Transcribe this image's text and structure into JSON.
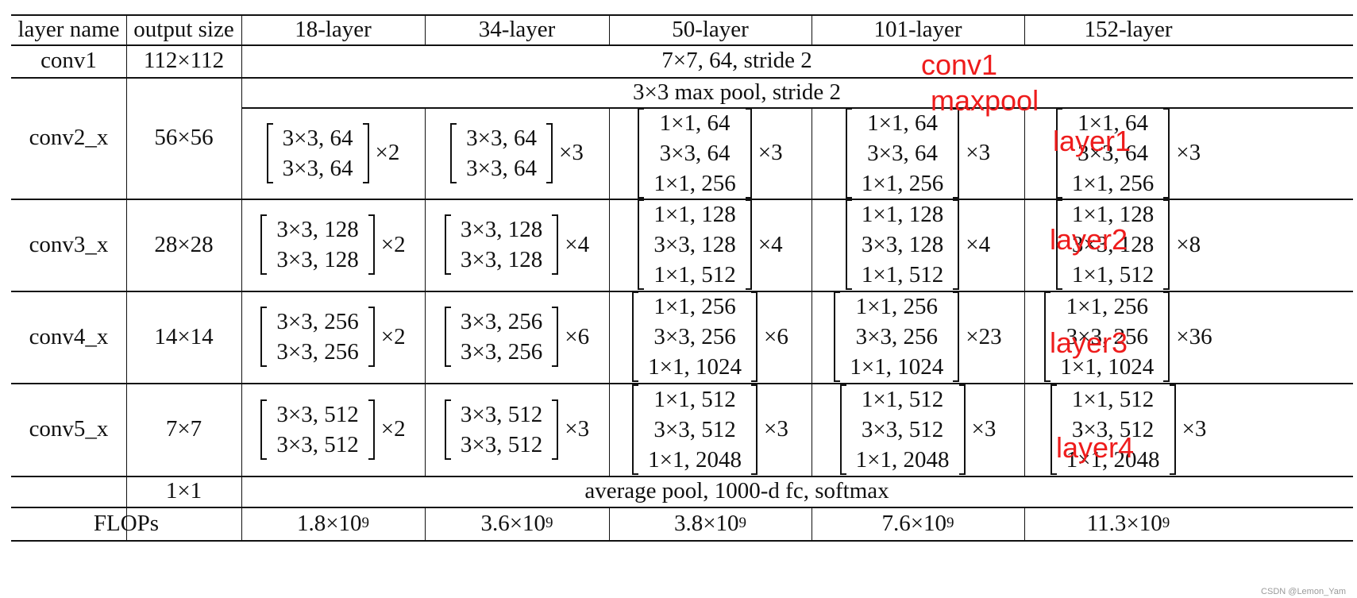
{
  "header": [
    "layer name",
    "output size",
    "18-layer",
    "34-layer",
    "50-layer",
    "101-layer",
    "152-layer"
  ],
  "conv1": {
    "name": "conv1",
    "size": "112×112",
    "spec": "7×7, 64, stride 2"
  },
  "maxpool": "3×3 max pool, stride 2",
  "stages": [
    {
      "name": "conv2_x",
      "size": "56×56",
      "blocks": [
        {
          "lines": [
            "3×3, 64",
            "3×3, 64"
          ],
          "mult": "×2"
        },
        {
          "lines": [
            "3×3, 64",
            "3×3, 64"
          ],
          "mult": "×3"
        },
        {
          "lines": [
            "1×1, 64",
            "3×3, 64",
            "1×1, 256"
          ],
          "mult": "×3"
        },
        {
          "lines": [
            "1×1, 64",
            "3×3, 64",
            "1×1, 256"
          ],
          "mult": "×3"
        },
        {
          "lines": [
            "1×1, 64",
            "3×3, 64",
            "1×1, 256"
          ],
          "mult": "×3"
        }
      ]
    },
    {
      "name": "conv3_x",
      "size": "28×28",
      "blocks": [
        {
          "lines": [
            "3×3, 128",
            "3×3, 128"
          ],
          "mult": "×2"
        },
        {
          "lines": [
            "3×3, 128",
            "3×3, 128"
          ],
          "mult": "×4"
        },
        {
          "lines": [
            "1×1, 128",
            "3×3, 128",
            "1×1, 512"
          ],
          "mult": "×4"
        },
        {
          "lines": [
            "1×1, 128",
            "3×3, 128",
            "1×1, 512"
          ],
          "mult": "×4"
        },
        {
          "lines": [
            "1×1, 128",
            "3×3, 128",
            "1×1, 512"
          ],
          "mult": "×8"
        }
      ]
    },
    {
      "name": "conv4_x",
      "size": "14×14",
      "blocks": [
        {
          "lines": [
            "3×3, 256",
            "3×3, 256"
          ],
          "mult": "×2"
        },
        {
          "lines": [
            "3×3, 256",
            "3×3, 256"
          ],
          "mult": "×6"
        },
        {
          "lines": [
            "1×1, 256",
            "3×3, 256",
            "1×1, 1024"
          ],
          "mult": "×6"
        },
        {
          "lines": [
            "1×1, 256",
            "3×3, 256",
            "1×1, 1024"
          ],
          "mult": "×23"
        },
        {
          "lines": [
            "1×1, 256",
            "3×3, 256",
            "1×1, 1024"
          ],
          "mult": "×36"
        }
      ]
    },
    {
      "name": "conv5_x",
      "size": "7×7",
      "blocks": [
        {
          "lines": [
            "3×3, 512",
            "3×3, 512"
          ],
          "mult": "×2"
        },
        {
          "lines": [
            "3×3, 512",
            "3×3, 512"
          ],
          "mult": "×3"
        },
        {
          "lines": [
            "1×1, 512",
            "3×3, 512",
            "1×1, 2048"
          ],
          "mult": "×3"
        },
        {
          "lines": [
            "1×1, 512",
            "3×3, 512",
            "1×1, 2048"
          ],
          "mult": "×3"
        },
        {
          "lines": [
            "1×1, 512",
            "3×3, 512",
            "1×1, 2048"
          ],
          "mult": "×3"
        }
      ]
    }
  ],
  "final": {
    "size": "1×1",
    "spec": "average pool, 1000-d fc, softmax"
  },
  "flops": {
    "label": "FLOPs",
    "mantissas": [
      "1.8×10",
      "3.6×10",
      "3.8×10",
      "7.6×10",
      "11.3×10"
    ],
    "exponent": "9"
  },
  "annotations": {
    "color": "#ee1c1c",
    "labels": [
      "conv1",
      "maxpool",
      "layer1",
      "layer2",
      "layer3",
      "layer4"
    ]
  },
  "watermark": "CSDN @Lemon_Yam"
}
